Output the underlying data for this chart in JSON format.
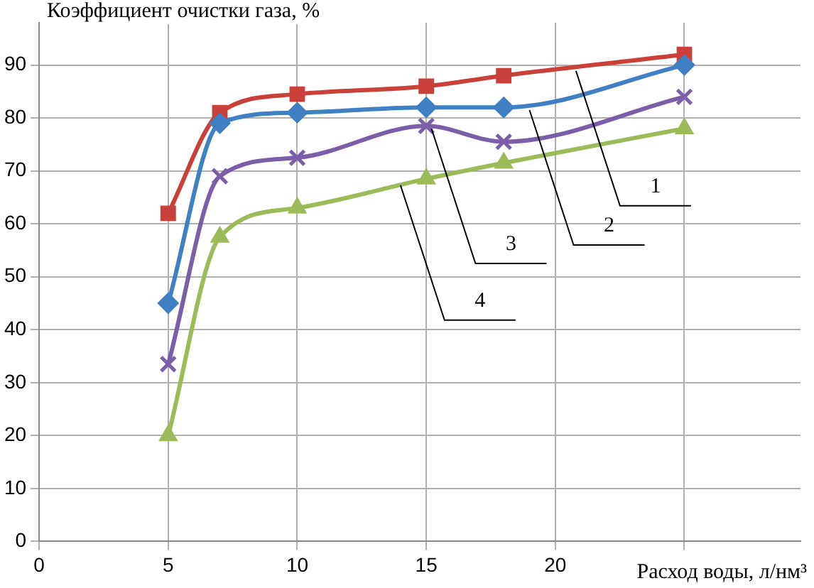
{
  "chart_data": {
    "type": "line",
    "ylabel": "Коэффициент очистки газа, %",
    "xlabel": "Расход воды, л/нм³",
    "xlim": [
      0,
      29.5
    ],
    "xticks": [
      0,
      5,
      10,
      15,
      20,
      {
        "value": 25,
        "label": null
      }
    ],
    "ylim": [
      0,
      98
    ],
    "yticks": [
      0,
      10,
      20,
      30,
      40,
      50,
      60,
      70,
      80,
      90
    ],
    "grid": true,
    "legend": false,
    "x": [
      5,
      7,
      10,
      15,
      18,
      25
    ],
    "series": [
      {
        "color": "#c9403a",
        "marker": "square",
        "values": [
          62,
          81,
          84.5,
          86,
          88,
          92
        ]
      },
      {
        "color": "#3f7fc4",
        "marker": "diamond",
        "values": [
          45,
          79,
          81,
          82,
          82,
          90
        ]
      },
      {
        "color": "#7b5ea7",
        "marker": "cross",
        "values": [
          33.5,
          69,
          72.5,
          78.5,
          75.5,
          84
        ]
      },
      {
        "color": "#9bbb59",
        "marker": "triangle",
        "values": [
          20,
          57.5,
          63,
          68.5,
          71.5,
          78
        ]
      }
    ],
    "annotations": [
      {
        "text": "1",
        "x": 20.8,
        "y": 88.9
      },
      {
        "text": "2",
        "x": 19,
        "y": 81.5
      },
      {
        "text": "3",
        "x": 15.2,
        "y": 78
      },
      {
        "text": "4",
        "x": 14,
        "y": 67.3
      }
    ]
  }
}
